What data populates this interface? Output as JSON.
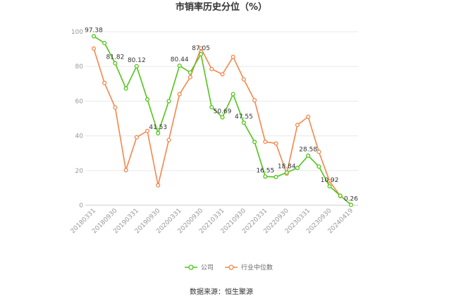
{
  "chart_data": {
    "type": "line",
    "title": "市销率历史分位（%）",
    "source": "数据来源：恒生聚源",
    "ylim": [
      0,
      100
    ],
    "yticks": [
      0,
      20,
      40,
      60,
      80,
      100
    ],
    "x": [
      "20180331",
      "20180630",
      "20180930",
      "20181231",
      "20190331",
      "20190630",
      "20190930",
      "20191231",
      "20200331",
      "20200630",
      "20200930",
      "20201231",
      "20210331",
      "20210630",
      "20210930",
      "20211231",
      "20220331",
      "20220630",
      "20220930",
      "20221231",
      "20230331",
      "20230630",
      "20230930",
      "20231231",
      "20240419"
    ],
    "xtick_labels": [
      "20180331",
      "20180930",
      "20190331",
      "20190930",
      "20200331",
      "20200930",
      "20210331",
      "20210930",
      "20220331",
      "20220930",
      "20230331",
      "20230930",
      "20240419"
    ],
    "grid": true,
    "legend_position": "bottom",
    "series": [
      {
        "name": "公司",
        "color": "#52c41a",
        "values": [
          97.38,
          93.5,
          81.82,
          67.3,
          80.12,
          61.0,
          41.53,
          60.0,
          80.44,
          76.5,
          87.05,
          56.5,
          50.69,
          64.0,
          47.55,
          36.5,
          16.55,
          16.3,
          18.84,
          21.5,
          28.58,
          22.3,
          10.92,
          5.5,
          0.26
        ],
        "labeled": {
          "0": "97.38",
          "2": "81.82",
          "4": "80.12",
          "6": "41.53",
          "8": "80.44",
          "10": "87.05",
          "12": "50.69",
          "14": "47.55",
          "16": "16.55",
          "18": "18.84",
          "20": "28.58",
          "22": "10.92",
          "24": "0.26"
        }
      },
      {
        "name": "行业中位数",
        "color": "#f4874b",
        "values": [
          90.3,
          70.5,
          56.3,
          20.2,
          39.2,
          42.8,
          11.5,
          37.6,
          64.0,
          73.8,
          90.5,
          78.5,
          75.5,
          85.5,
          72.5,
          60.5,
          36.6,
          35.6,
          18.2,
          46.3,
          51.0,
          30.8,
          13.8,
          5.3,
          null
        ]
      }
    ]
  }
}
